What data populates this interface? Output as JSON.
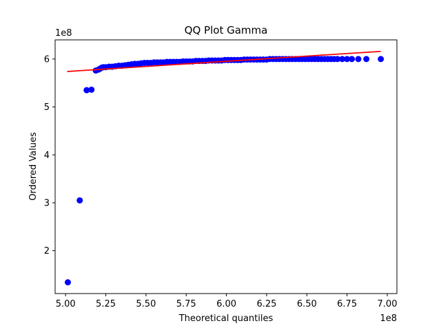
{
  "chart_data": {
    "type": "scatter",
    "title": "QQ Plot Gamma",
    "xlabel": "Theoretical quantiles",
    "ylabel": "Ordered Values",
    "x_offset_label": "1e8",
    "y_offset_label": "1e8",
    "x_scale": 100000000,
    "y_scale": 100000000,
    "xlim": [
      4.935,
      7.06
    ],
    "ylim": [
      1.105,
      6.4
    ],
    "xticks": [
      5.0,
      5.25,
      5.5,
      5.75,
      6.0,
      6.25,
      6.5,
      6.75,
      7.0
    ],
    "xtick_labels": [
      "5.00",
      "5.25",
      "5.50",
      "5.75",
      "6.00",
      "6.25",
      "6.50",
      "6.75",
      "7.00"
    ],
    "yticks": [
      2,
      3,
      4,
      5,
      6
    ],
    "ytick_labels": [
      "2",
      "3",
      "4",
      "5",
      "6"
    ],
    "grid": false,
    "colors": {
      "points": "#0000ff",
      "fit_line": "#ff0000"
    },
    "series": [
      {
        "kind": "points",
        "x": [
          5.014,
          5.088,
          5.131,
          5.161,
          5.188,
          5.205,
          5.215,
          5.225,
          5.235,
          5.25,
          5.27,
          5.29,
          5.31,
          5.33,
          5.35,
          5.37,
          5.39,
          5.41,
          5.43,
          5.45,
          5.47,
          5.49,
          5.51,
          5.53,
          5.55,
          5.57,
          5.59,
          5.61,
          5.63,
          5.65,
          5.67,
          5.69,
          5.71,
          5.73,
          5.75,
          5.77,
          5.79,
          5.81,
          5.83,
          5.85,
          5.87,
          5.89,
          5.91,
          5.93,
          5.95,
          5.97,
          5.99,
          6.01,
          6.03,
          6.05,
          6.07,
          6.09,
          6.11,
          6.13,
          6.15,
          6.17,
          6.19,
          6.21,
          6.23,
          6.25,
          6.27,
          6.29,
          6.31,
          6.33,
          6.35,
          6.37,
          6.39,
          6.41,
          6.43,
          6.45,
          6.47,
          6.49,
          6.51,
          6.53,
          6.55,
          6.57,
          6.59,
          6.61,
          6.63,
          6.65,
          6.67,
          6.69,
          6.72,
          6.75,
          6.78,
          6.82,
          6.87,
          6.96
        ],
        "y": [
          1.34,
          3.05,
          5.35,
          5.36,
          5.76,
          5.78,
          5.8,
          5.82,
          5.83,
          5.83,
          5.84,
          5.84,
          5.85,
          5.86,
          5.86,
          5.87,
          5.88,
          5.89,
          5.9,
          5.9,
          5.91,
          5.92,
          5.92,
          5.92,
          5.93,
          5.93,
          5.93,
          5.93,
          5.94,
          5.94,
          5.94,
          5.94,
          5.94,
          5.95,
          5.95,
          5.95,
          5.95,
          5.96,
          5.96,
          5.96,
          5.96,
          5.97,
          5.97,
          5.97,
          5.97,
          5.97,
          5.98,
          5.98,
          5.98,
          5.98,
          5.98,
          5.98,
          5.99,
          5.99,
          5.99,
          5.99,
          5.99,
          5.99,
          5.99,
          5.99,
          6.0,
          6.0,
          6.0,
          6.0,
          6.0,
          6.0,
          6.0,
          6.0,
          6.0,
          6.0,
          6.0,
          6.0,
          6.0,
          6.0,
          6.0,
          6.0,
          6.0,
          6.0,
          6.0,
          6.0,
          6.0,
          6.0,
          6.0,
          6.0,
          6.0,
          6.0,
          6.0,
          6.0
        ]
      },
      {
        "kind": "fit_line",
        "x": [
          5.01,
          6.96
        ],
        "y": [
          5.74,
          6.16
        ]
      }
    ]
  }
}
